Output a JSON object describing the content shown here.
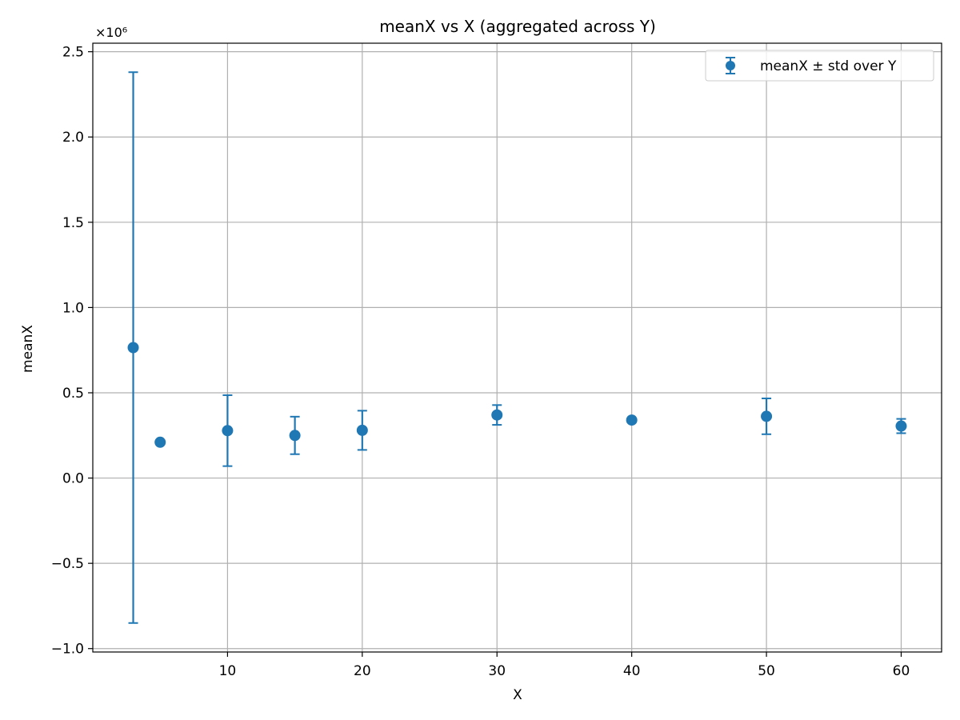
{
  "chart_data": {
    "type": "scatter",
    "title": "meanX vs X (aggregated across Y)",
    "xlabel": "X",
    "ylabel": "meanX",
    "scale_note": "×10⁶",
    "xlim": [
      0,
      63
    ],
    "ylim": [
      -1.02,
      2.55
    ],
    "xticks": [
      10,
      20,
      30,
      40,
      50,
      60
    ],
    "xtick_labels": [
      "10",
      "20",
      "30",
      "40",
      "50",
      "60"
    ],
    "yticks": [
      -1.0,
      -0.5,
      0.0,
      0.5,
      1.0,
      1.5,
      2.0,
      2.5
    ],
    "ytick_labels": [
      "−1.0",
      "−0.5",
      "0.0",
      "0.5",
      "1.0",
      "1.5",
      "2.0",
      "2.5"
    ],
    "grid": true,
    "legend_position": "top-right",
    "color": "#1f77b4",
    "series": [
      {
        "name": "meanX ± std over Y",
        "x": [
          3,
          5,
          10,
          15,
          20,
          30,
          40,
          50,
          60
        ],
        "y": [
          0.765,
          0.21,
          0.278,
          0.25,
          0.28,
          0.37,
          0.34,
          0.362,
          0.305
        ],
        "err": [
          1.615,
          0.012,
          0.208,
          0.11,
          0.115,
          0.058,
          0.0,
          0.105,
          0.042
        ]
      }
    ]
  }
}
